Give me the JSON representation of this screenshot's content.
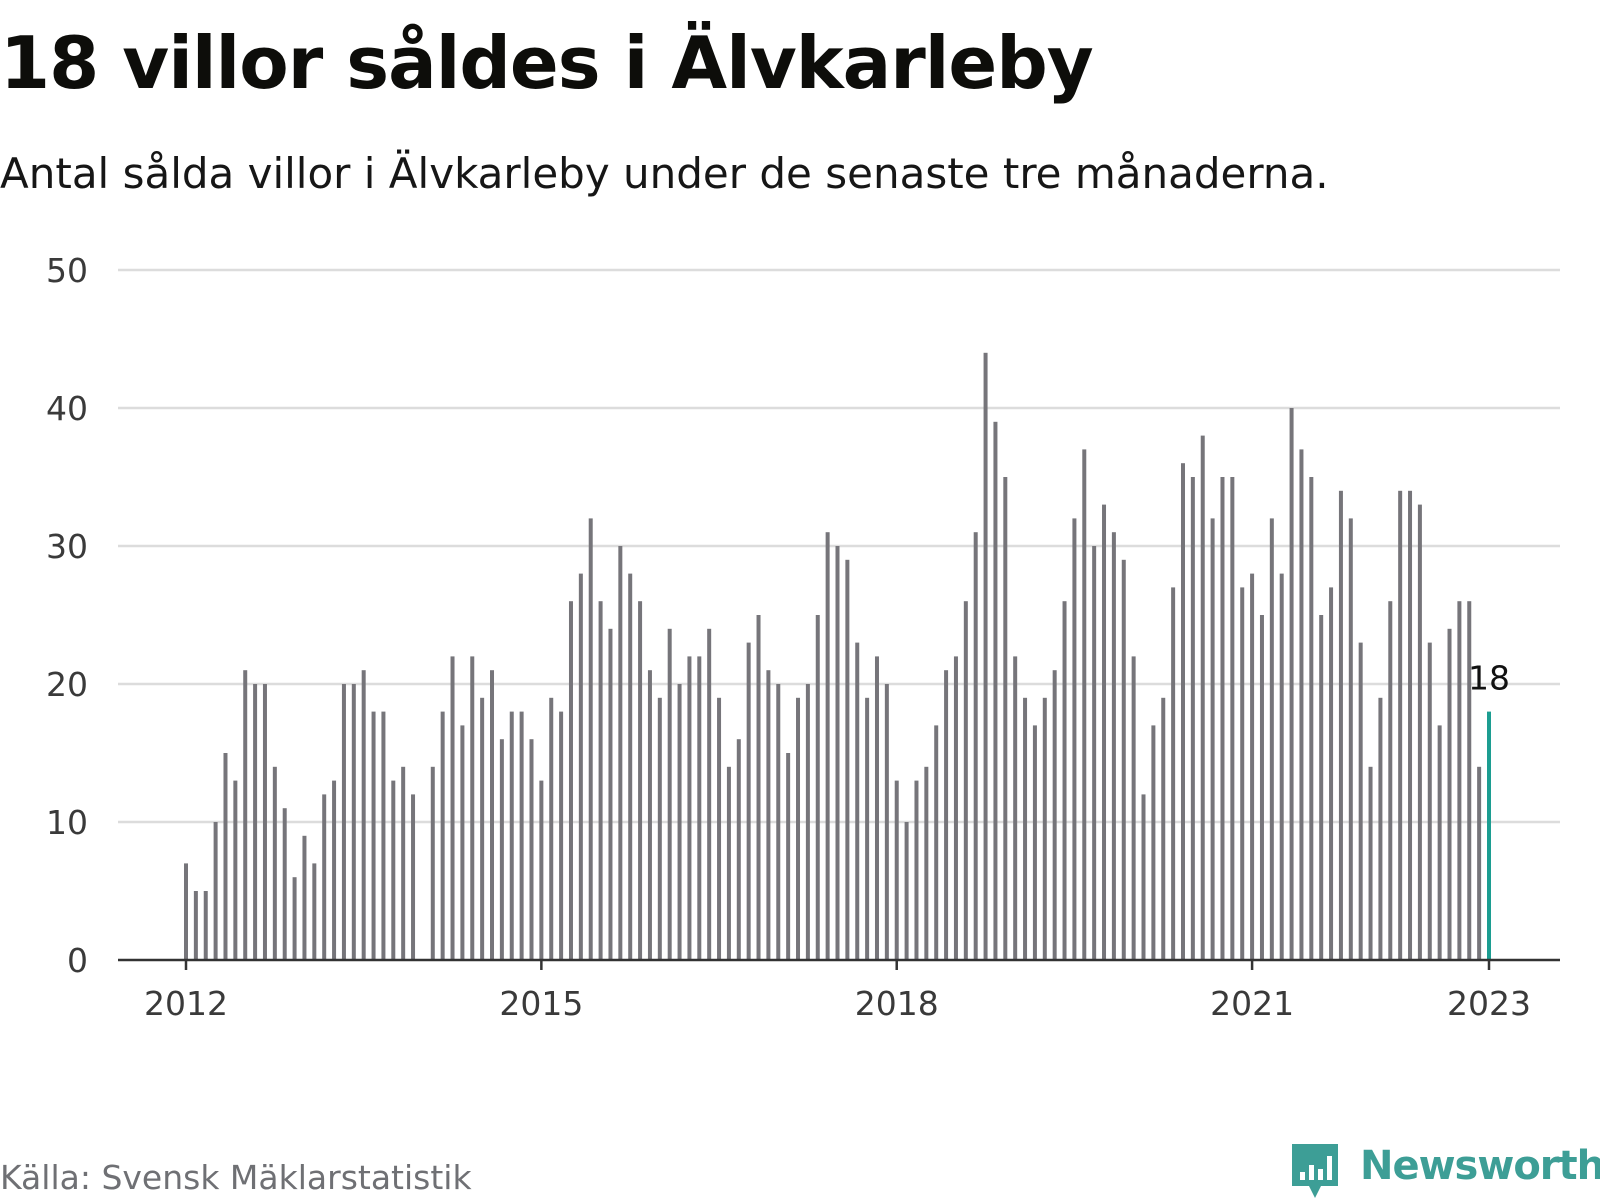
{
  "header": {
    "title": "18 villor såldes i Älvkarleby",
    "subtitle": "Antal sålda villor i Älvkarleby under de senaste tre månaderna."
  },
  "footer": {
    "source": "Källa: Svensk Mäklarstatistik",
    "brand": "Newsworthy"
  },
  "colors": {
    "bar": "#76757a",
    "highlight": "#1c9d91",
    "grid": "#dcdcdc",
    "axis": "#333333",
    "brand": "#3d9e96"
  },
  "chart_data": {
    "type": "bar",
    "title": "18 villor såldes i Älvkarleby",
    "subtitle": "Antal sålda villor i Älvkarleby under de senaste tre månaderna.",
    "xlabel": "",
    "ylabel": "",
    "x_start": "2012-01",
    "x_ticks": [
      "2012",
      "2015",
      "2018",
      "2021",
      "2023"
    ],
    "y_ticks": [
      0,
      10,
      20,
      30,
      40,
      50
    ],
    "ylim": [
      0,
      50
    ],
    "grid": true,
    "highlight_label": "18",
    "series": [
      {
        "values": [
          7,
          5,
          5,
          10,
          15,
          13,
          21,
          20,
          20,
          14,
          11,
          6,
          9,
          7,
          12,
          13,
          20,
          20,
          21,
          18,
          18,
          13,
          14,
          12,
          null,
          14,
          18,
          22,
          17,
          22,
          19,
          21,
          16,
          18,
          18,
          16,
          13,
          19,
          18,
          26,
          28,
          32,
          26,
          24,
          30,
          28,
          26,
          21,
          19,
          24,
          20,
          22,
          22,
          24,
          19,
          14,
          16,
          23,
          25,
          21,
          20,
          15,
          19,
          20,
          25,
          31,
          30,
          29,
          23,
          19,
          22,
          20,
          13,
          10,
          13,
          14,
          17,
          21,
          22,
          26,
          31,
          44,
          39,
          35,
          22,
          19,
          17,
          19,
          21,
          26,
          32,
          37,
          30,
          33,
          31,
          29,
          22,
          12,
          17,
          19,
          27,
          36,
          35,
          38,
          32,
          35,
          35,
          27,
          28,
          25,
          32,
          28,
          40,
          37,
          35,
          25,
          27,
          34,
          32,
          23,
          14,
          19,
          26,
          34,
          34,
          33,
          23,
          17,
          24,
          26,
          26,
          14,
          18
        ]
      }
    ]
  }
}
